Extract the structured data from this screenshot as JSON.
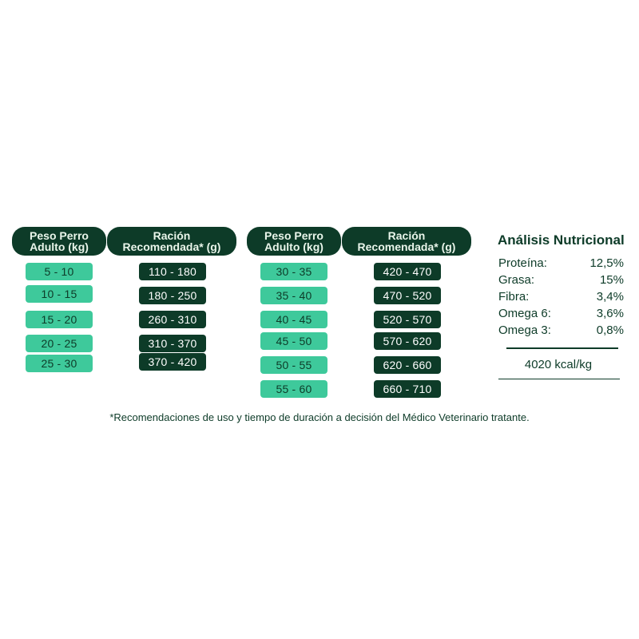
{
  "table1": {
    "weight_header": {
      "line1": "Peso Perro",
      "line2": "Adulto (kg)"
    },
    "ration_header": {
      "line1": "Ración",
      "line2": "Recomendada* (g)"
    },
    "weights": [
      "5 - 10",
      "10 - 15",
      "15 - 20",
      "20 - 25",
      "25 - 30"
    ],
    "rations": [
      "110 - 180",
      "180 - 250",
      "260 - 310",
      "310 - 370",
      "370 - 420"
    ]
  },
  "table2": {
    "weight_header": {
      "line1": "Peso Perro",
      "line2": "Adulto (kg)"
    },
    "ration_header": {
      "line1": "Ración",
      "line2": "Recomendada* (g)"
    },
    "weights": [
      "30 - 35",
      "35 - 40",
      "40 - 45",
      "45 - 50",
      "50 - 55",
      "55 - 60"
    ],
    "rations": [
      "420 - 470",
      "470 - 520",
      "520 - 570",
      "570 - 620",
      "620 - 660",
      "660 - 710"
    ]
  },
  "nutrition": {
    "title": "Análisis Nutricional",
    "rows": [
      {
        "label": "Proteína:",
        "value": "12,5%"
      },
      {
        "label": "Grasa:",
        "value": "15%"
      },
      {
        "label": "Fibra:",
        "value": "3,4%"
      },
      {
        "label": "Omega 6:",
        "value": "3,6%"
      },
      {
        "label": "Omega 3:",
        "value": "0,8%"
      }
    ],
    "energy": "4020 kcal/kg"
  },
  "footnote": "*Recomendaciones de uso y tiempo de duración a decisión del Médico Veterinario tratante.",
  "colors": {
    "dark_green": "#0d3b28",
    "mint": "#3ec99b"
  }
}
